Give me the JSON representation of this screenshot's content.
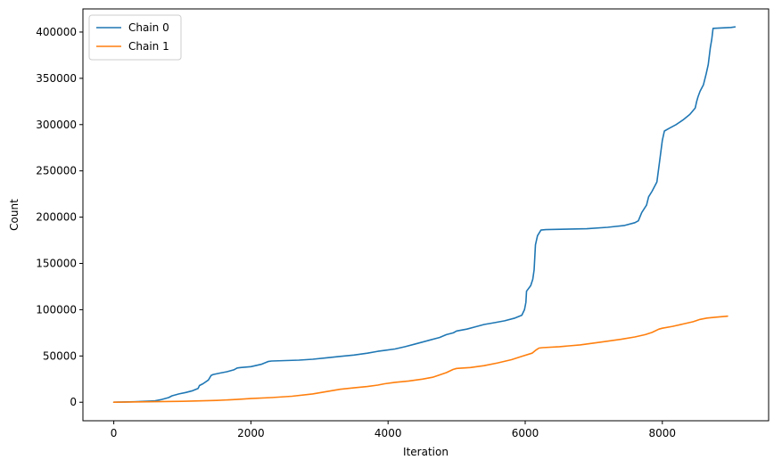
{
  "chart_data": {
    "type": "line",
    "title": "",
    "xlabel": "Iteration",
    "ylabel": "Count",
    "xlim": [
      -450,
      9550
    ],
    "ylim": [
      -20000,
      425000
    ],
    "xticks": [
      0,
      2000,
      4000,
      6000,
      8000
    ],
    "yticks": [
      0,
      50000,
      100000,
      150000,
      200000,
      250000,
      300000,
      350000,
      400000
    ],
    "grid": false,
    "legend_position": "top-left",
    "series": [
      {
        "name": "Chain 0",
        "color": "#1f77b4",
        "x": [
          0,
          300,
          600,
          700,
          800,
          850,
          950,
          1050,
          1150,
          1230,
          1250,
          1300,
          1380,
          1420,
          1450,
          1550,
          1650,
          1750,
          1800,
          1850,
          2000,
          2150,
          2250,
          2300,
          2500,
          2700,
          2900,
          3100,
          3300,
          3500,
          3700,
          3850,
          3950,
          4100,
          4250,
          4400,
          4600,
          4750,
          4850,
          4950,
          5000,
          5150,
          5250,
          5400,
          5550,
          5700,
          5850,
          5950,
          5990,
          6010,
          6020,
          6080,
          6110,
          6130,
          6150,
          6180,
          6230,
          6300,
          6600,
          6900,
          7200,
          7450,
          7600,
          7650,
          7700,
          7770,
          7800,
          7850,
          7920,
          7960,
          8000,
          8030,
          8100,
          8200,
          8300,
          8400,
          8480,
          8500,
          8520,
          8550,
          8600,
          8640,
          8670,
          8700,
          8720,
          8740,
          9000,
          9060
        ],
        "y": [
          0,
          500,
          1500,
          3000,
          5000,
          7000,
          9000,
          10500,
          12500,
          15000,
          18000,
          20000,
          24000,
          29000,
          30000,
          31500,
          33000,
          35000,
          37000,
          37500,
          38500,
          41000,
          44000,
          44500,
          45000,
          45500,
          46500,
          48000,
          49500,
          51000,
          53000,
          55000,
          56000,
          57500,
          60000,
          63000,
          67000,
          70000,
          73000,
          75000,
          77000,
          79000,
          81000,
          84000,
          86000,
          88000,
          91000,
          94000,
          100000,
          108000,
          120000,
          126000,
          133000,
          143000,
          170000,
          180000,
          186000,
          186500,
          187000,
          187500,
          189000,
          191000,
          194000,
          196000,
          205000,
          213000,
          222000,
          228000,
          238000,
          260000,
          283000,
          293000,
          296000,
          300000,
          305000,
          311000,
          318000,
          325000,
          330000,
          336000,
          343000,
          355000,
          365000,
          383000,
          392000,
          404000,
          405000,
          405500
        ]
      },
      {
        "name": "Chain 1",
        "color": "#ff7f0e",
        "x": [
          0,
          500,
          1000,
          1500,
          1800,
          2000,
          2300,
          2600,
          2900,
          3100,
          3300,
          3500,
          3700,
          3850,
          3950,
          4100,
          4300,
          4500,
          4650,
          4750,
          4850,
          4950,
          5000,
          5200,
          5400,
          5600,
          5800,
          5950,
          6100,
          6150,
          6200,
          6250,
          6500,
          6800,
          7100,
          7400,
          7600,
          7750,
          7850,
          7950,
          8000,
          8150,
          8300,
          8450,
          8550,
          8650,
          8800,
          8950
        ],
        "y": [
          0,
          500,
          1000,
          2000,
          3000,
          4000,
          5000,
          6500,
          9000,
          11500,
          14000,
          15500,
          17000,
          18500,
          20000,
          21500,
          23000,
          25000,
          27000,
          29500,
          32000,
          35500,
          36500,
          37500,
          39500,
          42500,
          46000,
          49500,
          53000,
          56000,
          58500,
          59000,
          60000,
          62000,
          65000,
          68000,
          70500,
          73000,
          75500,
          79000,
          80000,
          82000,
          84500,
          87000,
          89500,
          91000,
          92000,
          93000
        ]
      }
    ]
  }
}
